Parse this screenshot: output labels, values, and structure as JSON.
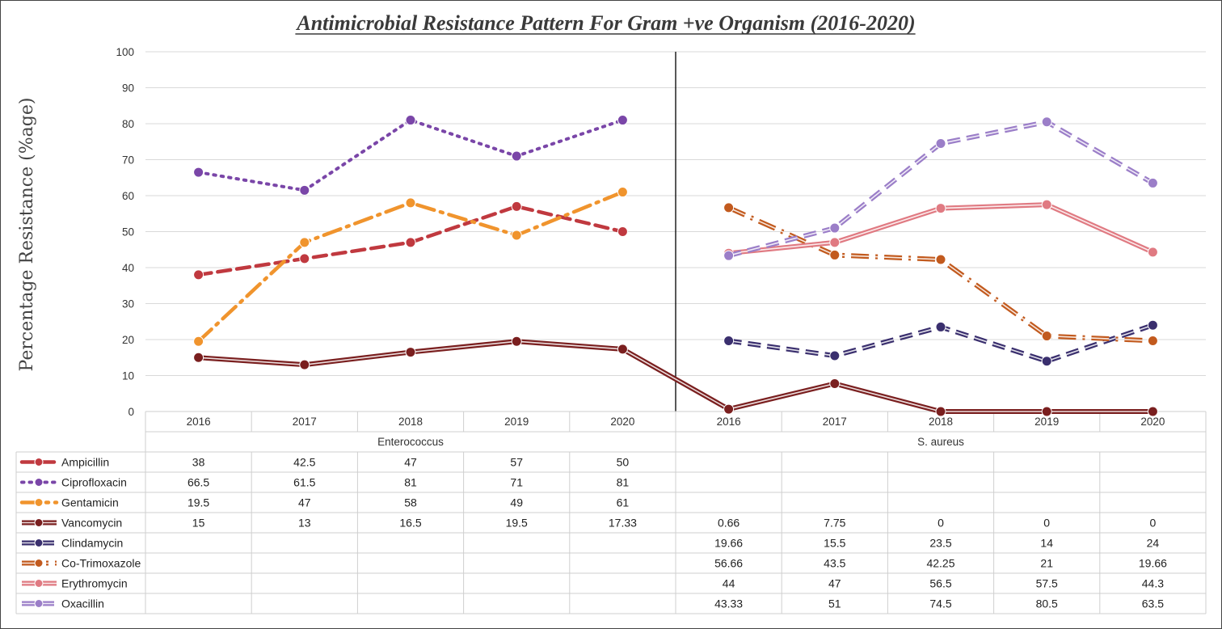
{
  "chart_data": {
    "type": "line",
    "title": "Antimicrobial Resistance Pattern For Gram +ve Organism (2016-2020)",
    "ylabel": "Percentage Resistance (%age)",
    "xlabel": "",
    "ylim": [
      0,
      100
    ],
    "yticks": [
      "0",
      "10",
      "20",
      "30",
      "40",
      "50",
      "60",
      "70",
      "80",
      "90",
      "100"
    ],
    "groups": [
      {
        "name": "Enterococcus",
        "categories": [
          "2016",
          "2017",
          "2018",
          "2019",
          "2020"
        ]
      },
      {
        "name": "S. aureus",
        "categories": [
          "2016",
          "2017",
          "2018",
          "2019",
          "2020"
        ]
      }
    ],
    "series": [
      {
        "name": "Ampicillin",
        "color": "#c0393f",
        "style": "dash",
        "values": [
          38,
          42.5,
          47,
          57,
          50,
          null,
          null,
          null,
          null,
          null
        ],
        "labels": [
          "38",
          "42.5",
          "47",
          "57",
          "50",
          "",
          "",
          "",
          "",
          ""
        ]
      },
      {
        "name": "Ciprofloxacin",
        "color": "#7a46a8",
        "style": "dot",
        "values": [
          66.5,
          61.5,
          81,
          71,
          81,
          null,
          null,
          null,
          null,
          null
        ],
        "labels": [
          "66.5",
          "61.5",
          "81",
          "71",
          "81",
          "",
          "",
          "",
          "",
          ""
        ]
      },
      {
        "name": "Gentamicin",
        "color": "#f0942d",
        "style": "dashdot",
        "values": [
          19.5,
          47,
          58,
          49,
          61,
          null,
          null,
          null,
          null,
          null
        ],
        "labels": [
          "19.5",
          "47",
          "58",
          "49",
          "61",
          "",
          "",
          "",
          "",
          ""
        ]
      },
      {
        "name": "Vancomycin",
        "color": "#7a1f1f",
        "style": "double",
        "values": [
          15,
          13,
          16.5,
          19.5,
          17.33,
          0.66,
          7.75,
          0,
          0,
          0
        ],
        "labels": [
          "15",
          "13",
          "16.5",
          "19.5",
          "17.33",
          "0.66",
          "7.75",
          "0",
          "0",
          "0"
        ]
      },
      {
        "name": "Clindamycin",
        "color": "#3a2f6e",
        "style": "double-dash",
        "values": [
          null,
          null,
          null,
          null,
          null,
          19.66,
          15.5,
          23.5,
          14,
          24
        ],
        "labels": [
          "",
          "",
          "",
          "",
          "",
          "19.66",
          "15.5",
          "23.5",
          "14",
          "24"
        ]
      },
      {
        "name": "Co-Trimoxazole",
        "color": "#c25a1e",
        "style": "double-dashdot",
        "values": [
          null,
          null,
          null,
          null,
          null,
          56.66,
          43.5,
          42.25,
          21,
          19.66
        ],
        "labels": [
          "",
          "",
          "",
          "",
          "",
          "56.66",
          "43.5",
          "42.25",
          "21",
          "19.66"
        ]
      },
      {
        "name": "Erythromycin",
        "color": "#e07a82",
        "style": "double",
        "values": [
          null,
          null,
          null,
          null,
          null,
          44,
          47,
          56.5,
          57.5,
          44.3
        ],
        "labels": [
          "",
          "",
          "",
          "",
          "",
          "44",
          "47",
          "56.5",
          "57.5",
          "44.3"
        ]
      },
      {
        "name": "Oxacillin",
        "color": "#9b7ec8",
        "style": "double-dash",
        "values": [
          null,
          null,
          null,
          null,
          null,
          43.33,
          51,
          74.5,
          80.5,
          63.5
        ],
        "labels": [
          "",
          "",
          "",
          "",
          "",
          "43.33",
          "51",
          "74.5",
          "80.5",
          "63.5"
        ]
      }
    ],
    "grid": true,
    "legend": "data-table-left",
    "separator_between_groups": true
  }
}
